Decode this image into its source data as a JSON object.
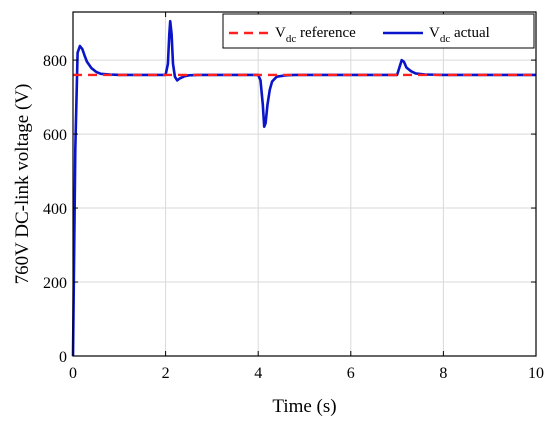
{
  "chart_data": {
    "type": "line",
    "xlabel": "Time (s)",
    "ylabel": "760V DC-link voltage (V)",
    "xlim": [
      0,
      10
    ],
    "ylim": [
      0,
      930
    ],
    "xticks": [
      0,
      2,
      4,
      6,
      8,
      10
    ],
    "yticks": [
      0,
      200,
      400,
      600,
      800
    ],
    "grid": true,
    "legend_position": "top-right",
    "series": [
      {
        "name": "V dc reference",
        "legend_main": "V",
        "legend_sub": "dc",
        "legend_suffix": " reference",
        "color": "#ff2020",
        "style": "dashed",
        "x": [
          0,
          10
        ],
        "y": [
          760,
          760
        ]
      },
      {
        "name": "V dc actual",
        "legend_main": "V",
        "legend_sub": "dc",
        "legend_suffix": " actual",
        "color": "#0a14c8",
        "style": "solid",
        "x": [
          0,
          0.05,
          0.1,
          0.15,
          0.2,
          0.25,
          0.3,
          0.4,
          0.5,
          0.6,
          0.8,
          1.0,
          1.5,
          2.0,
          2.05,
          2.08,
          2.1,
          2.13,
          2.16,
          2.2,
          2.25,
          2.3,
          2.4,
          2.5,
          2.7,
          3.0,
          3.5,
          4.0,
          4.05,
          4.1,
          4.13,
          4.16,
          4.2,
          4.25,
          4.3,
          4.4,
          4.6,
          4.8,
          5.0,
          6.0,
          7.0,
          7.05,
          7.1,
          7.15,
          7.2,
          7.3,
          7.4,
          7.6,
          8.0,
          10.0
        ],
        "y": [
          0,
          560,
          820,
          838,
          830,
          812,
          796,
          778,
          768,
          763,
          761,
          760,
          760,
          760,
          790,
          870,
          905,
          870,
          790,
          755,
          745,
          750,
          756,
          759,
          760,
          760,
          760,
          760,
          745,
          680,
          620,
          630,
          680,
          720,
          742,
          755,
          759,
          760,
          760,
          760,
          760,
          780,
          800,
          795,
          780,
          770,
          764,
          761,
          760,
          760
        ]
      }
    ]
  }
}
